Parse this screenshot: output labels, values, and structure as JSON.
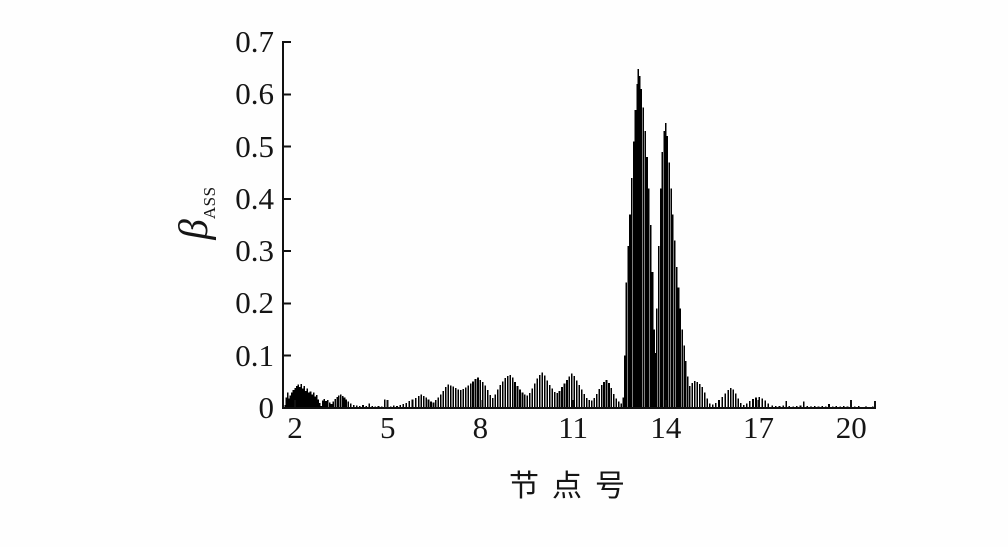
{
  "figure": {
    "background": "#fefefe",
    "bar_color": "#000000",
    "axis_color": "#111111",
    "text_color": "#151515"
  },
  "chart_data": {
    "type": "bar",
    "title": "",
    "xlabel": "节点号",
    "ylabel": "βASS",
    "ylabel_symbol": "β",
    "ylabel_subscript": "ASS",
    "grid": false,
    "legend": "none",
    "xlim": [
      1.61,
      20.77
    ],
    "ylim": [
      0,
      0.7
    ],
    "x_tick_values": [
      2,
      5,
      8,
      11,
      14,
      17,
      20
    ],
    "x_tick_labels": [
      "2",
      "5",
      "8",
      "11",
      "14",
      "17",
      "20"
    ],
    "y_tick_values": [
      0,
      0.1,
      0.2,
      0.3,
      0.4,
      0.5,
      0.6,
      0.7
    ],
    "y_tick_labels": [
      "0",
      "0.1",
      "0.2",
      "0.3",
      "0.4",
      "0.5",
      "0.6",
      "0.7"
    ],
    "peaks": [
      {
        "node": 13.1,
        "value": 0.648
      },
      {
        "node": 14.0,
        "value": 0.545
      }
    ],
    "points": [
      [
        1.68,
        0.006
      ],
      [
        1.72,
        0.02
      ],
      [
        1.76,
        0.03
      ],
      [
        1.8,
        0.018
      ],
      [
        1.85,
        0.024
      ],
      [
        1.9,
        0.03
      ],
      [
        1.95,
        0.034
      ],
      [
        2.0,
        0.038
      ],
      [
        2.05,
        0.042
      ],
      [
        2.1,
        0.045
      ],
      [
        2.15,
        0.04
      ],
      [
        2.2,
        0.046
      ],
      [
        2.25,
        0.037
      ],
      [
        2.3,
        0.042
      ],
      [
        2.35,
        0.033
      ],
      [
        2.4,
        0.037
      ],
      [
        2.45,
        0.03
      ],
      [
        2.5,
        0.032
      ],
      [
        2.55,
        0.026
      ],
      [
        2.6,
        0.03
      ],
      [
        2.65,
        0.022
      ],
      [
        2.7,
        0.025
      ],
      [
        2.75,
        0.016
      ],
      [
        2.8,
        0.01
      ],
      [
        2.85,
        0.004
      ],
      [
        2.9,
        0.014
      ],
      [
        2.95,
        0.017
      ],
      [
        3.0,
        0.013
      ],
      [
        3.06,
        0.015
      ],
      [
        3.12,
        0.011
      ],
      [
        3.18,
        0.008
      ],
      [
        3.24,
        0.012
      ],
      [
        3.3,
        0.017
      ],
      [
        3.36,
        0.021
      ],
      [
        3.42,
        0.024
      ],
      [
        3.48,
        0.026
      ],
      [
        3.54,
        0.023
      ],
      [
        3.6,
        0.02
      ],
      [
        3.66,
        0.016
      ],
      [
        3.72,
        0.012
      ],
      [
        3.8,
        0.009
      ],
      [
        3.9,
        0.006
      ],
      [
        4.0,
        0.005
      ],
      [
        4.1,
        0.004
      ],
      [
        4.2,
        0.006
      ],
      [
        4.3,
        0.004
      ],
      [
        4.4,
        0.009
      ],
      [
        4.5,
        0.004
      ],
      [
        4.6,
        0.003
      ],
      [
        4.7,
        0.004
      ],
      [
        4.8,
        0.003
      ],
      [
        4.9,
        0.016
      ],
      [
        5.0,
        0.004
      ],
      [
        5.1,
        0.003
      ],
      [
        5.2,
        0.005
      ],
      [
        5.3,
        0.004
      ],
      [
        5.4,
        0.006
      ],
      [
        5.5,
        0.008
      ],
      [
        5.6,
        0.01
      ],
      [
        5.7,
        0.013
      ],
      [
        5.8,
        0.016
      ],
      [
        5.9,
        0.019
      ],
      [
        6.0,
        0.023
      ],
      [
        6.08,
        0.026
      ],
      [
        6.16,
        0.023
      ],
      [
        6.24,
        0.02
      ],
      [
        6.32,
        0.016
      ],
      [
        6.4,
        0.012
      ],
      [
        6.48,
        0.011
      ],
      [
        6.56,
        0.015
      ],
      [
        6.64,
        0.02
      ],
      [
        6.72,
        0.026
      ],
      [
        6.8,
        0.033
      ],
      [
        6.88,
        0.04
      ],
      [
        6.96,
        0.045
      ],
      [
        7.04,
        0.043
      ],
      [
        7.12,
        0.041
      ],
      [
        7.2,
        0.038
      ],
      [
        7.28,
        0.035
      ],
      [
        7.36,
        0.034
      ],
      [
        7.44,
        0.036
      ],
      [
        7.52,
        0.039
      ],
      [
        7.6,
        0.043
      ],
      [
        7.68,
        0.047
      ],
      [
        7.76,
        0.051
      ],
      [
        7.84,
        0.055
      ],
      [
        7.92,
        0.058
      ],
      [
        8.0,
        0.054
      ],
      [
        8.08,
        0.05
      ],
      [
        8.16,
        0.043
      ],
      [
        8.24,
        0.034
      ],
      [
        8.32,
        0.025
      ],
      [
        8.4,
        0.019
      ],
      [
        8.48,
        0.026
      ],
      [
        8.56,
        0.035
      ],
      [
        8.64,
        0.044
      ],
      [
        8.72,
        0.051
      ],
      [
        8.8,
        0.057
      ],
      [
        8.88,
        0.061
      ],
      [
        8.96,
        0.063
      ],
      [
        9.04,
        0.058
      ],
      [
        9.12,
        0.05
      ],
      [
        9.2,
        0.042
      ],
      [
        9.28,
        0.035
      ],
      [
        9.36,
        0.03
      ],
      [
        9.44,
        0.026
      ],
      [
        9.52,
        0.024
      ],
      [
        9.6,
        0.029
      ],
      [
        9.68,
        0.037
      ],
      [
        9.76,
        0.047
      ],
      [
        9.84,
        0.056
      ],
      [
        9.92,
        0.063
      ],
      [
        10.0,
        0.068
      ],
      [
        10.08,
        0.062
      ],
      [
        10.16,
        0.053
      ],
      [
        10.24,
        0.044
      ],
      [
        10.32,
        0.037
      ],
      [
        10.4,
        0.031
      ],
      [
        10.48,
        0.029
      ],
      [
        10.56,
        0.033
      ],
      [
        10.64,
        0.04
      ],
      [
        10.72,
        0.047
      ],
      [
        10.8,
        0.054
      ],
      [
        10.88,
        0.06
      ],
      [
        10.96,
        0.066
      ],
      [
        11.04,
        0.061
      ],
      [
        11.12,
        0.053
      ],
      [
        11.2,
        0.044
      ],
      [
        11.28,
        0.035
      ],
      [
        11.36,
        0.027
      ],
      [
        11.44,
        0.019
      ],
      [
        11.52,
        0.015
      ],
      [
        11.6,
        0.014
      ],
      [
        11.68,
        0.019
      ],
      [
        11.76,
        0.027
      ],
      [
        11.84,
        0.036
      ],
      [
        11.92,
        0.044
      ],
      [
        12.0,
        0.05
      ],
      [
        12.08,
        0.054
      ],
      [
        12.16,
        0.048
      ],
      [
        12.24,
        0.038
      ],
      [
        12.32,
        0.027
      ],
      [
        12.4,
        0.018
      ],
      [
        12.48,
        0.012
      ],
      [
        12.56,
        0.009
      ],
      [
        12.62,
        0.02
      ],
      [
        12.68,
        0.1
      ],
      [
        12.72,
        0.24
      ],
      [
        12.78,
        0.31
      ],
      [
        12.84,
        0.37
      ],
      [
        12.9,
        0.44
      ],
      [
        12.96,
        0.51
      ],
      [
        13.02,
        0.57
      ],
      [
        13.07,
        0.62
      ],
      [
        13.11,
        0.648
      ],
      [
        13.16,
        0.635
      ],
      [
        13.21,
        0.61
      ],
      [
        13.27,
        0.575
      ],
      [
        13.33,
        0.53
      ],
      [
        13.39,
        0.48
      ],
      [
        13.45,
        0.42
      ],
      [
        13.51,
        0.35
      ],
      [
        13.57,
        0.26
      ],
      [
        13.62,
        0.15
      ],
      [
        13.66,
        0.105
      ],
      [
        13.71,
        0.19
      ],
      [
        13.77,
        0.31
      ],
      [
        13.83,
        0.42
      ],
      [
        13.89,
        0.49
      ],
      [
        13.95,
        0.53
      ],
      [
        14.0,
        0.545
      ],
      [
        14.05,
        0.52
      ],
      [
        14.11,
        0.47
      ],
      [
        14.17,
        0.42
      ],
      [
        14.23,
        0.37
      ],
      [
        14.29,
        0.32
      ],
      [
        14.35,
        0.27
      ],
      [
        14.41,
        0.23
      ],
      [
        14.47,
        0.19
      ],
      [
        14.53,
        0.15
      ],
      [
        14.59,
        0.12
      ],
      [
        14.65,
        0.09
      ],
      [
        14.71,
        0.06
      ],
      [
        14.78,
        0.042
      ],
      [
        14.86,
        0.048
      ],
      [
        14.94,
        0.052
      ],
      [
        15.02,
        0.05
      ],
      [
        15.1,
        0.046
      ],
      [
        15.18,
        0.04
      ],
      [
        15.26,
        0.03
      ],
      [
        15.34,
        0.018
      ],
      [
        15.42,
        0.009
      ],
      [
        15.52,
        0.007
      ],
      [
        15.62,
        0.01
      ],
      [
        15.72,
        0.015
      ],
      [
        15.82,
        0.021
      ],
      [
        15.92,
        0.028
      ],
      [
        16.02,
        0.034
      ],
      [
        16.1,
        0.038
      ],
      [
        16.18,
        0.035
      ],
      [
        16.26,
        0.028
      ],
      [
        16.34,
        0.018
      ],
      [
        16.42,
        0.01
      ],
      [
        16.52,
        0.006
      ],
      [
        16.62,
        0.009
      ],
      [
        16.72,
        0.013
      ],
      [
        16.82,
        0.017
      ],
      [
        16.92,
        0.02
      ],
      [
        17.02,
        0.021
      ],
      [
        17.12,
        0.018
      ],
      [
        17.22,
        0.014
      ],
      [
        17.32,
        0.009
      ],
      [
        17.44,
        0.005
      ],
      [
        17.56,
        0.004
      ],
      [
        17.68,
        0.004
      ],
      [
        17.8,
        0.005
      ],
      [
        17.9,
        0.013
      ],
      [
        18.0,
        0.004
      ],
      [
        18.12,
        0.003
      ],
      [
        18.24,
        0.004
      ],
      [
        18.36,
        0.005
      ],
      [
        18.46,
        0.012
      ],
      [
        18.58,
        0.004
      ],
      [
        18.7,
        0.003
      ],
      [
        18.82,
        0.004
      ],
      [
        18.94,
        0.003
      ],
      [
        19.06,
        0.004
      ],
      [
        19.18,
        0.003
      ],
      [
        19.28,
        0.008
      ],
      [
        19.4,
        0.003
      ],
      [
        19.52,
        0.004
      ],
      [
        19.64,
        0.003
      ],
      [
        19.76,
        0.004
      ],
      [
        19.88,
        0.003
      ],
      [
        20.0,
        0.004
      ],
      [
        20.12,
        0.003
      ],
      [
        20.24,
        0.004
      ],
      [
        20.36,
        0.002
      ],
      [
        20.48,
        0.003
      ],
      [
        20.6,
        0.002
      ],
      [
        20.7,
        0.003
      ]
    ]
  }
}
